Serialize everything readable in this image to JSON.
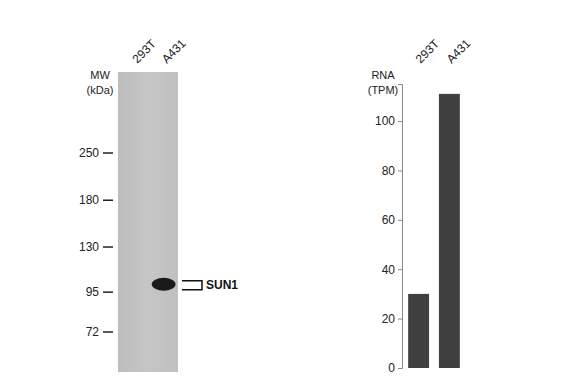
{
  "blot": {
    "lanes": [
      "293T",
      "A431"
    ],
    "mw_title": [
      "MW",
      "(kDa)"
    ],
    "mw_markers": [
      250,
      180,
      130,
      95,
      72
    ],
    "band": {
      "label": "SUN1",
      "lane": "A431",
      "mw": [
        96,
        105
      ]
    }
  },
  "chart_data": {
    "type": "bar",
    "y_label": [
      "RNA",
      "(TPM)"
    ],
    "categories": [
      "293T",
      "A431"
    ],
    "values": [
      30,
      111
    ],
    "color": "#404040",
    "ylim": [
      0,
      115
    ],
    "yticks": [
      0,
      20,
      40,
      60,
      80,
      100
    ],
    "grid": false
  }
}
